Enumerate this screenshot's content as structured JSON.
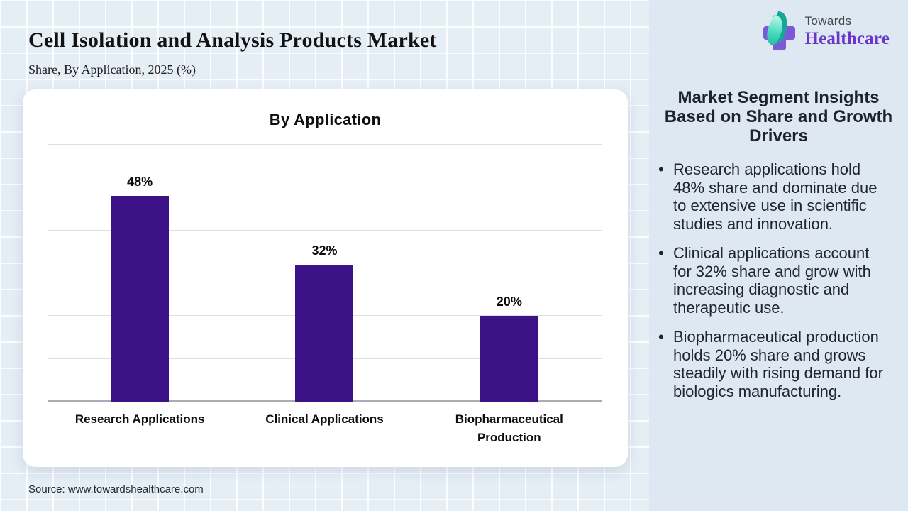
{
  "header": {
    "title": "Cell Isolation and Analysis Products Market",
    "subtitle": "Share, By Application, 2025 (%)"
  },
  "logo": {
    "top_text": "Towards",
    "bottom_text": "Healthcare",
    "cross_color": "#7f58d6",
    "leaf_dark_color": "#14a899",
    "wordmark_color": "#6a35cc",
    "top_text_color": "#41484f"
  },
  "chart_data": {
    "type": "bar",
    "title": "By Application",
    "categories": [
      "Research Applications",
      "Clinical Applications",
      "Biopharmaceutical Production"
    ],
    "values": [
      48,
      32,
      20
    ],
    "value_labels": [
      "48%",
      "32%",
      "20%"
    ],
    "unit": "%",
    "bar_color": "#3d1287",
    "ylim": [
      0,
      60
    ],
    "gridline_step": 10,
    "grid": true,
    "y_axis_tick_labels_visible": false,
    "legend": "none"
  },
  "insights": {
    "heading": "Market Segment Insights Based on Share and Growth Drivers",
    "bullets": [
      "Research applications hold 48% share and dominate due to extensive use in scientific studies and innovation.",
      "Clinical applications account for 32% share and grow with increasing diagnostic and therapeutic use.",
      "Biopharmaceutical production holds 20% share and grows steadily with rising demand for biologics manufacturing."
    ]
  },
  "footer": {
    "source": "Source: www.towardshealthcare.com"
  }
}
